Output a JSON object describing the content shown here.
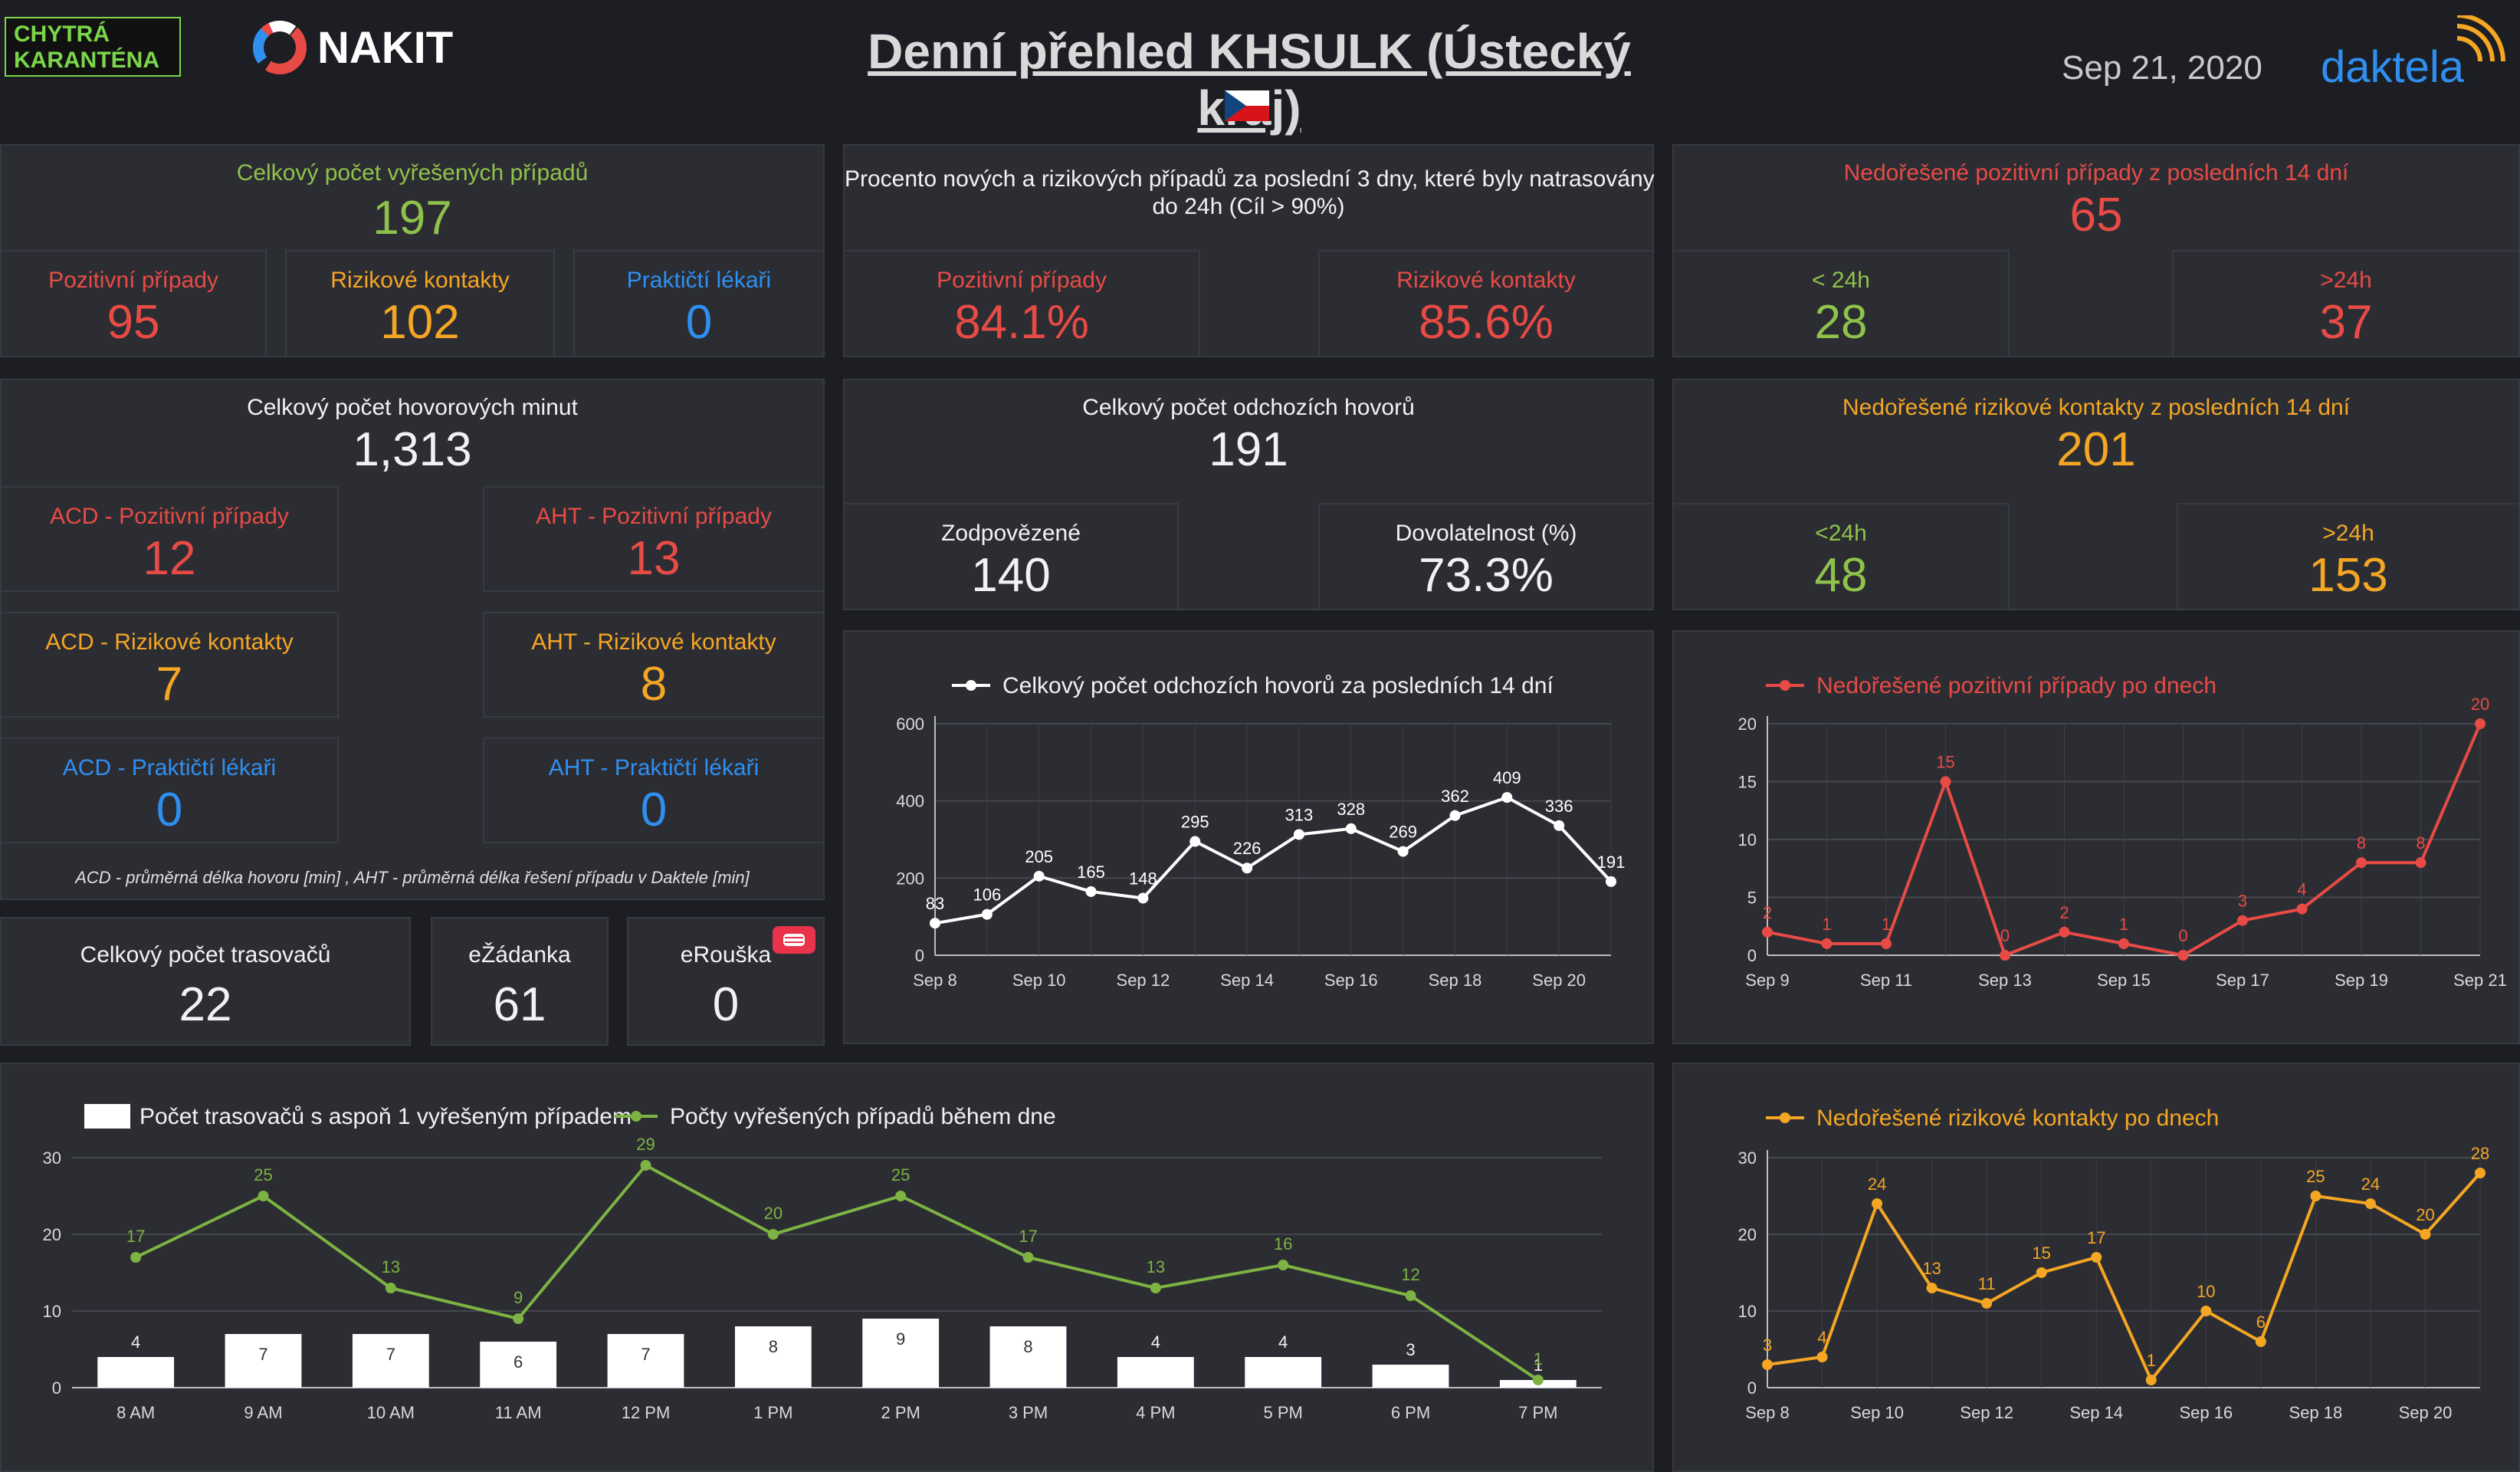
{
  "header": {
    "logo_chytra": "CHYTRÁ\nKARANTÉNA",
    "logo_chytra_l1": "CHYTRÁ",
    "logo_chytra_l2": "KARANTÉNA",
    "logo_nakit": "NAKIT",
    "title": "Denní přehled KHSULK (Ústecký kraj)",
    "date": "Sep 21, 2020",
    "logo_daktela": "daktela"
  },
  "resolved": {
    "title": "Celkový počet vyřešených případů",
    "total": "197",
    "positive_label": "Pozitivní případy",
    "positive": "95",
    "risky_label": "Rizikové kontakty",
    "risky": "102",
    "doctors_label": "Praktičtí lékaři",
    "doctors": "0"
  },
  "percent": {
    "title": "Procento nových a rizikových případů za poslední 3 dny, které byly natrasovány do 24h (Cíl > 90%)",
    "title_l1": "Procento nových a rizikových případů za poslední 3 dny, které byly natrasovány",
    "title_l2": "do 24h (Cíl > 90%)",
    "positive_label": "Pozitivní případy",
    "positive": "84.1%",
    "risky_label": "Rizikové kontakty",
    "risky": "85.6%"
  },
  "unresolved_pos": {
    "title": "Nedořešené pozitivní případy z posledních 14 dní",
    "total": "65",
    "lt_label": "< 24h",
    "lt": "28",
    "gt_label": ">24h",
    "gt": "37"
  },
  "minutes": {
    "title": "Celkový počet hovorových minut",
    "total": "1,313",
    "acd_pos_label": "ACD - Pozitivní případy",
    "acd_pos": "12",
    "aht_pos_label": "AHT - Pozitivní případy",
    "aht_pos": "13",
    "acd_risk_label": "ACD - Rizikové kontakty",
    "acd_risk": "7",
    "aht_risk_label": "AHT - Rizikové kontakty",
    "aht_risk": "8",
    "acd_doc_label": "ACD - Praktičtí lékaři",
    "acd_doc": "0",
    "aht_doc_label": "AHT - Praktičtí lékaři",
    "aht_doc": "0",
    "footnote": "ACD - průměrná délka hovoru [min] , AHT - průměrná délka řešení případu v Daktele [min]"
  },
  "calls": {
    "title": "Celkový počet odchozích hovorů",
    "total": "191",
    "answered_label": "Zodpovězené",
    "answered": "140",
    "reach_label": "Dovolatelnost (%)",
    "reach": "73.3%"
  },
  "unresolved_risk": {
    "title": "Nedořešené rizikové kontakty z posledních 14 dní",
    "total": "201",
    "lt_label": "<24h",
    "lt": "48",
    "gt_label": ">24h",
    "gt": "153"
  },
  "tracers": {
    "total_label": "Celkový počet trasovačů",
    "total": "22",
    "ezadanka_label": "eŽádanka",
    "ezadanka": "61",
    "erouska_label": "eRouška",
    "erouska": "0"
  },
  "chart_data": [
    {
      "id": "calls14",
      "type": "line",
      "series": [
        {
          "name": "Celkový počet odchozích hovorů za posledních 14 dní",
          "values": [
            83,
            106,
            205,
            165,
            148,
            295,
            226,
            313,
            328,
            269,
            362,
            409,
            336,
            191
          ],
          "color": "#ffffff"
        }
      ],
      "x": [
        "Sep 8",
        "Sep 9",
        "Sep 10",
        "Sep 11",
        "Sep 12",
        "Sep 13",
        "Sep 14",
        "Sep 15",
        "Sep 16",
        "Sep 17",
        "Sep 18",
        "Sep 19",
        "Sep 20",
        "Sep 21"
      ],
      "xticks": [
        "Sep 8",
        "Sep 10",
        "Sep 12",
        "Sep 14",
        "Sep 16",
        "Sep 18",
        "Sep 20"
      ],
      "yticks": [
        0,
        200,
        400,
        600
      ],
      "ylim": [
        0,
        600
      ],
      "legend": "top"
    },
    {
      "id": "pos_daily",
      "type": "line",
      "series": [
        {
          "name": "Nedořešené pozitivní případy po dnech",
          "values": [
            2,
            1,
            1,
            15,
            0,
            2,
            1,
            0,
            3,
            4,
            8,
            8,
            20
          ],
          "color": "#e84b45"
        }
      ],
      "x": [
        "Sep 9",
        "Sep 10",
        "Sep 11",
        "Sep 12",
        "Sep 13",
        "Sep 14",
        "Sep 15",
        "Sep 16",
        "Sep 17",
        "Sep 18",
        "Sep 19",
        "Sep 20",
        "Sep 21"
      ],
      "xticks": [
        "Sep 9",
        "Sep 11",
        "Sep 13",
        "Sep 15",
        "Sep 17",
        "Sep 19",
        "Sep 21"
      ],
      "yticks": [
        0,
        5,
        10,
        15,
        20
      ],
      "ylim": [
        0,
        20
      ],
      "legend": "top"
    },
    {
      "id": "hourly",
      "type": "bar",
      "categories": [
        "8 AM",
        "9 AM",
        "10 AM",
        "11 AM",
        "12 PM",
        "1 PM",
        "2 PM",
        "3 PM",
        "4 PM",
        "5 PM",
        "6 PM",
        "7 PM"
      ],
      "series": [
        {
          "name": "Počet trasovačů s aspoň 1 vyřešeným případem",
          "type": "bar",
          "values": [
            4,
            7,
            7,
            6,
            7,
            8,
            9,
            8,
            4,
            4,
            3,
            1
          ],
          "color": "#ffffff"
        },
        {
          "name": "Počty vyřešených případů během dne",
          "type": "line",
          "values": [
            17,
            25,
            13,
            9,
            29,
            20,
            25,
            17,
            13,
            16,
            12,
            1
          ],
          "color": "#7cb342"
        }
      ],
      "yticks": [
        0,
        10,
        20,
        30
      ],
      "ylim": [
        0,
        30
      ],
      "legend": "top-left"
    },
    {
      "id": "risk_daily",
      "type": "line",
      "series": [
        {
          "name": "Nedořešené rizikové kontakty po dnech",
          "values": [
            3,
            4,
            24,
            13,
            11,
            15,
            17,
            1,
            10,
            6,
            25,
            24,
            20,
            28
          ],
          "color": "#f5a623"
        }
      ],
      "x": [
        "Sep 8",
        "Sep 9",
        "Sep 10",
        "Sep 11",
        "Sep 12",
        "Sep 13",
        "Sep 14",
        "Sep 15",
        "Sep 16",
        "Sep 17",
        "Sep 18",
        "Sep 19",
        "Sep 20",
        "Sep 21"
      ],
      "xticks": [
        "Sep 8",
        "Sep 10",
        "Sep 12",
        "Sep 14",
        "Sep 16",
        "Sep 18",
        "Sep 20"
      ],
      "yticks": [
        0,
        10,
        20,
        30
      ],
      "ylim": [
        0,
        30
      ],
      "legend": "top"
    }
  ]
}
